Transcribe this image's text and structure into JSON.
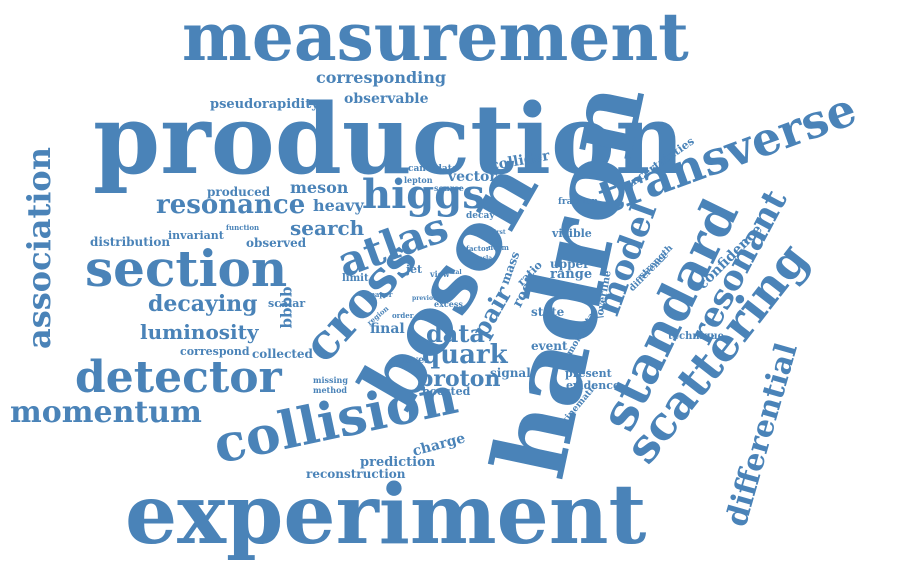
{
  "color": "#4a83b8",
  "words": [
    "measurement",
    "production",
    "hadron",
    "boson",
    "experiment",
    "transverse",
    "section",
    "collision",
    "standard",
    "scattering",
    "detector",
    "momentum",
    "cross",
    "association",
    "higgs",
    "atlas",
    "model",
    "resonant",
    "differential",
    "resonance",
    "decaying",
    "luminosity",
    "search",
    "quark",
    "proton",
    "corresponding",
    "pseudorapidity",
    "observable",
    "data",
    "pair",
    "confidence",
    "collider",
    "meson",
    "heavy",
    "vector",
    "produced",
    "distribution",
    "invariant",
    "observed",
    "final",
    "correspond",
    "collected",
    "prediction",
    "reconstruction",
    "charge",
    "boosted",
    "uncertainties",
    "root",
    "range",
    "upper",
    "technique",
    "event",
    "state",
    "signal",
    "mass",
    "ratio",
    "visible",
    "present",
    "evidence",
    "kinematic",
    "difference",
    "strength",
    "fraction",
    "momenta",
    "\\overline",
    "bbbb",
    "scalar",
    "jet",
    "limit",
    "level",
    "missing",
    "method",
    "excess",
    "candidate",
    "lepton",
    "source",
    "decay",
    "function",
    "paper",
    "view",
    "region",
    "order",
    "factor",
    "norm",
    "tesla",
    "total",
    "previous",
    "first"
  ]
}
